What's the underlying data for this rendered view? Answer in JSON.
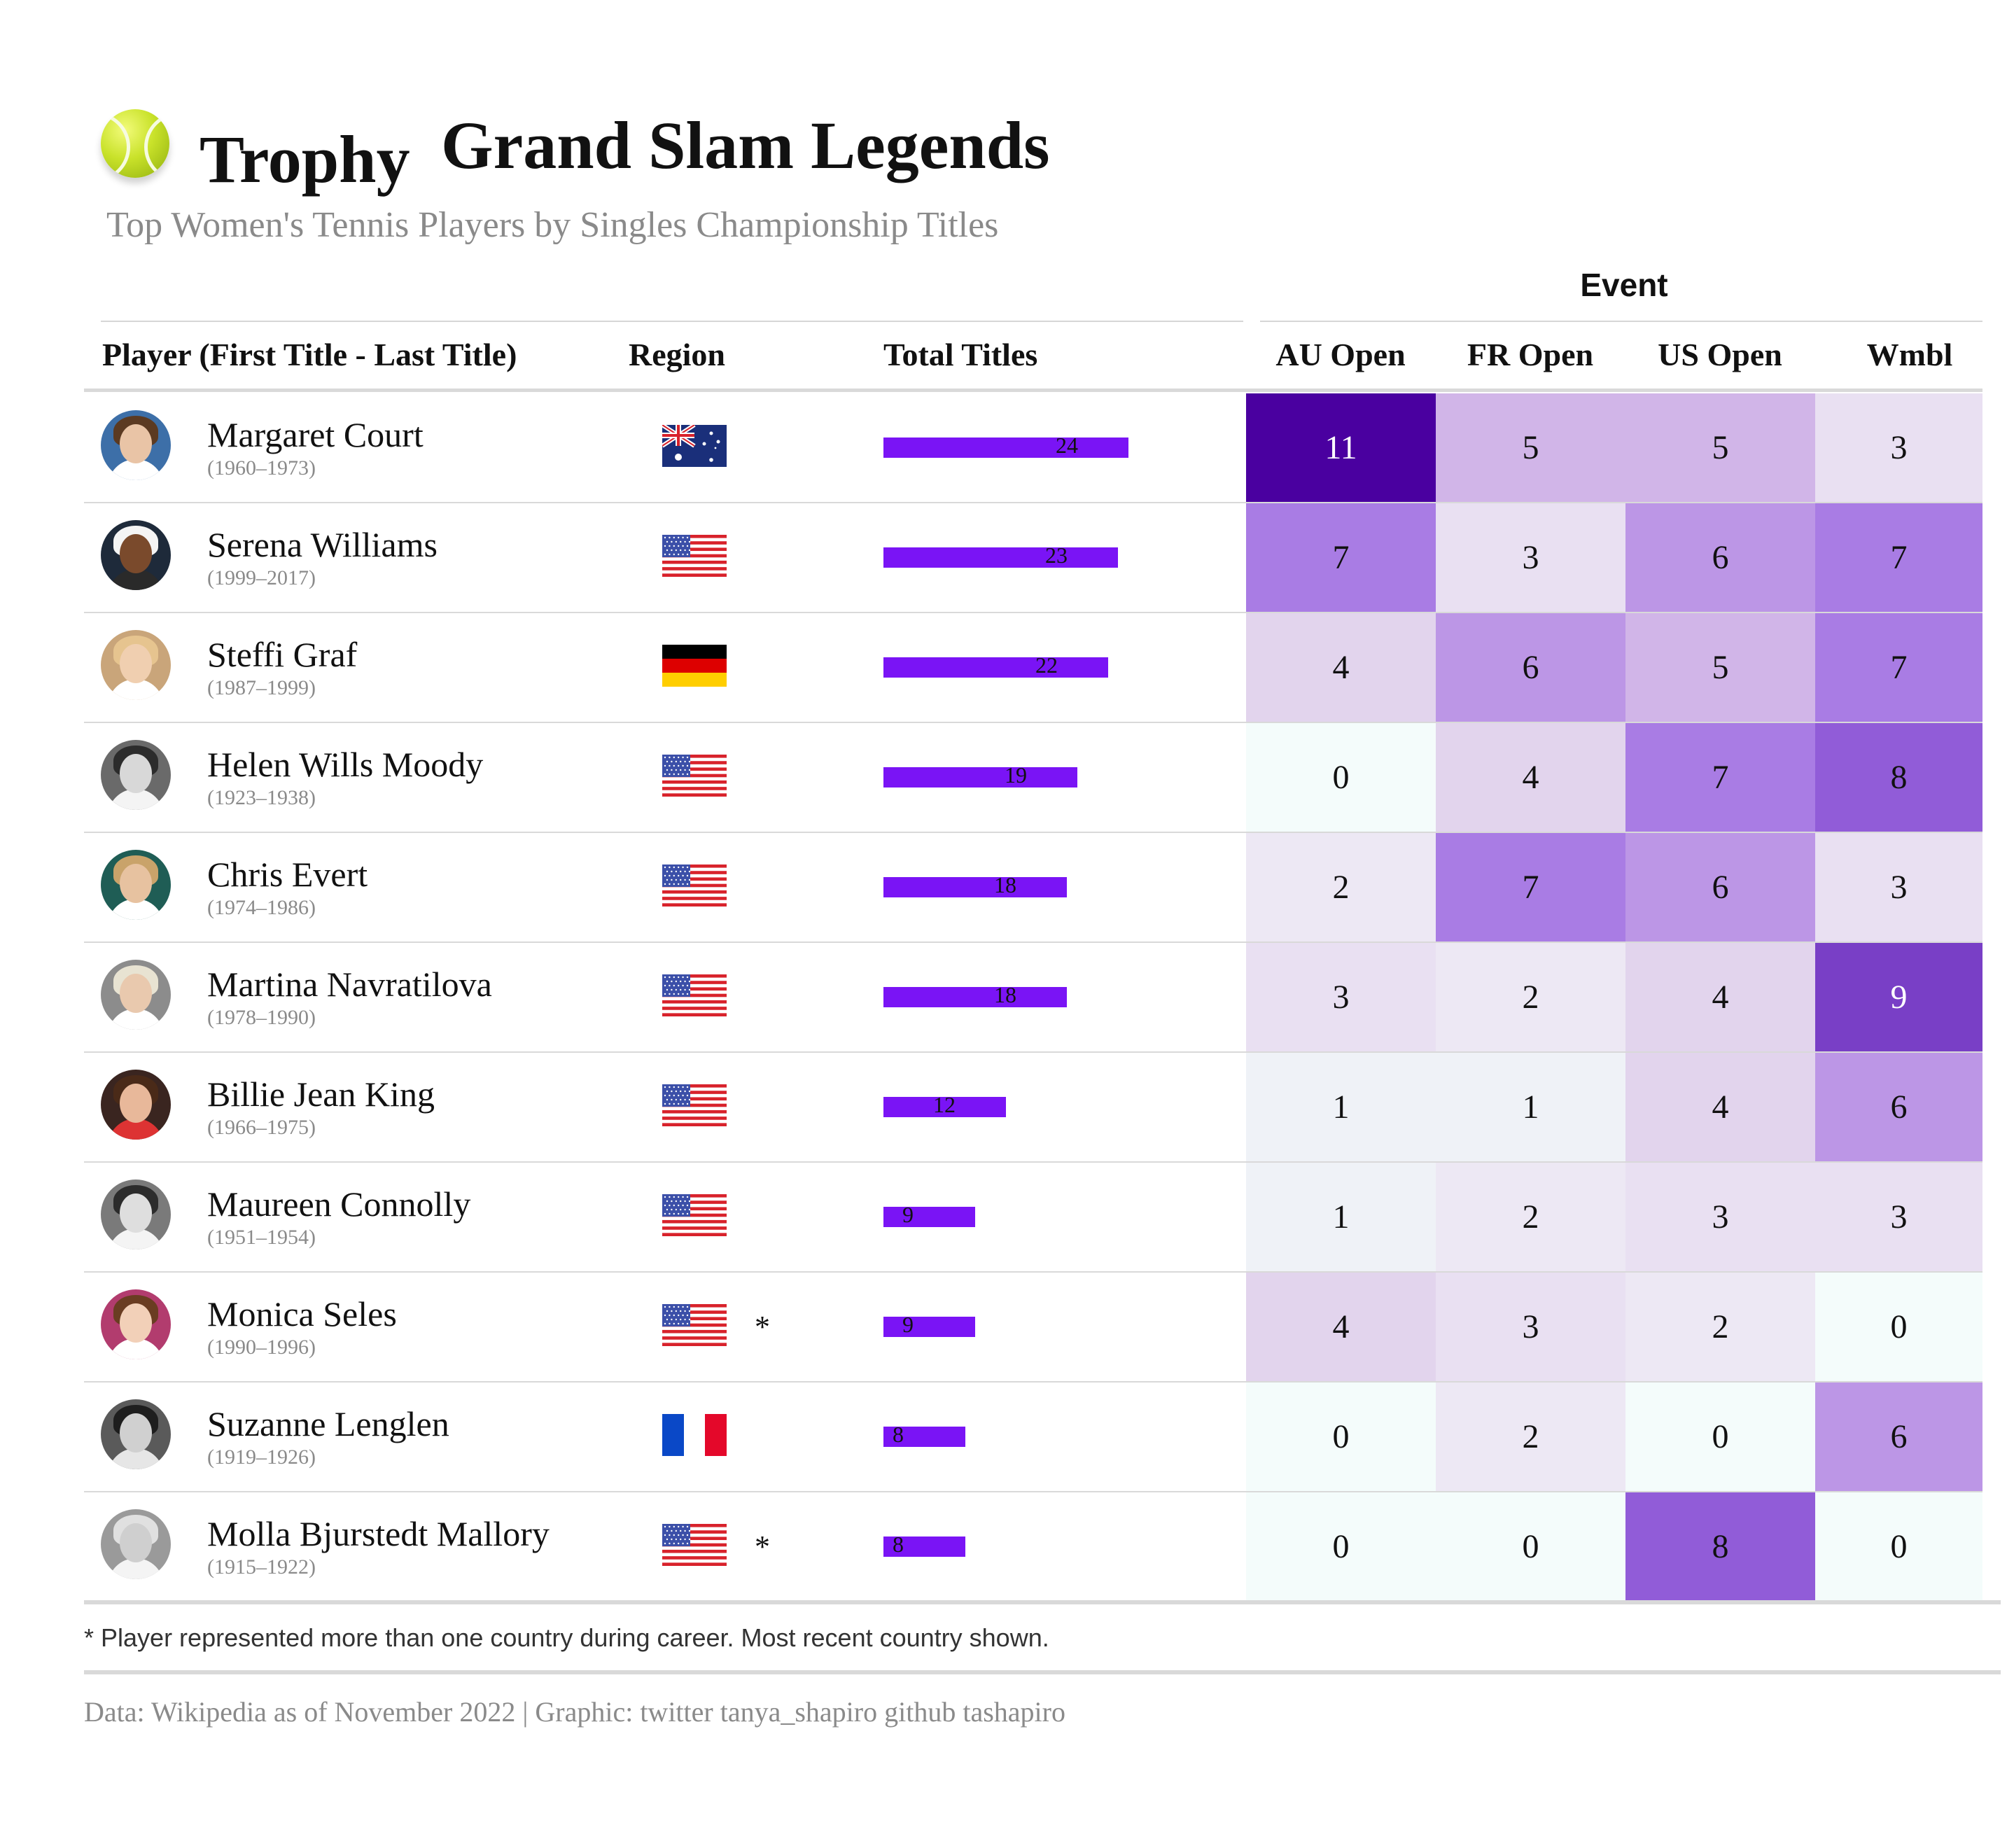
{
  "header": {
    "trophy_word": "Trophy",
    "title": "Grand Slam Legends",
    "subtitle": "Top Women's Tennis Players by Singles Championship Titles",
    "icon": "tennis-ball-icon"
  },
  "columns": {
    "player": "Player (First Title - Last Title)",
    "region": "Region",
    "total": "Total Titles",
    "event_group": "Event",
    "au": "AU Open",
    "fr": "FR Open",
    "us": "US Open",
    "wm": "Wmbl"
  },
  "colors": {
    "bar": "#7a14f5",
    "heat_low": "#f4fcfb",
    "heat_high": "#4a00a0"
  },
  "chart_data": {
    "type": "table",
    "title": "Grand Slam Legends",
    "subtitle": "Top Women's Tennis Players by Singles Championship Titles",
    "rows": [
      {
        "name": "Margaret Court",
        "years": "(1960–1973)",
        "region": "AU",
        "flag": "australia-flag-icon",
        "multi_country": false,
        "total": 24,
        "au": 11,
        "fr": 5,
        "us": 5,
        "wm": 3
      },
      {
        "name": "Serena Williams",
        "years": "(1999–2017)",
        "region": "US",
        "flag": "usa-flag-icon",
        "multi_country": false,
        "total": 23,
        "au": 7,
        "fr": 3,
        "us": 6,
        "wm": 7
      },
      {
        "name": "Steffi Graf",
        "years": "(1987–1999)",
        "region": "DE",
        "flag": "germany-flag-icon",
        "multi_country": false,
        "total": 22,
        "au": 4,
        "fr": 6,
        "us": 5,
        "wm": 7
      },
      {
        "name": "Helen Wills Moody",
        "years": "(1923–1938)",
        "region": "US",
        "flag": "usa-flag-icon",
        "multi_country": false,
        "total": 19,
        "au": 0,
        "fr": 4,
        "us": 7,
        "wm": 8
      },
      {
        "name": "Chris Evert",
        "years": "(1974–1986)",
        "region": "US",
        "flag": "usa-flag-icon",
        "multi_country": false,
        "total": 18,
        "au": 2,
        "fr": 7,
        "us": 6,
        "wm": 3
      },
      {
        "name": "Martina Navratilova",
        "years": "(1978–1990)",
        "region": "US",
        "flag": "usa-flag-icon",
        "multi_country": false,
        "total": 18,
        "au": 3,
        "fr": 2,
        "us": 4,
        "wm": 9
      },
      {
        "name": "Billie Jean King",
        "years": "(1966–1975)",
        "region": "US",
        "flag": "usa-flag-icon",
        "multi_country": false,
        "total": 12,
        "au": 1,
        "fr": 1,
        "us": 4,
        "wm": 6
      },
      {
        "name": "Maureen Connolly",
        "years": "(1951–1954)",
        "region": "US",
        "flag": "usa-flag-icon",
        "multi_country": false,
        "total": 9,
        "au": 1,
        "fr": 2,
        "us": 3,
        "wm": 3
      },
      {
        "name": "Monica Seles",
        "years": "(1990–1996)",
        "region": "US",
        "flag": "usa-flag-icon",
        "multi_country": true,
        "total": 9,
        "au": 4,
        "fr": 3,
        "us": 2,
        "wm": 0
      },
      {
        "name": "Suzanne Lenglen",
        "years": "(1919–1926)",
        "region": "FR",
        "flag": "france-flag-icon",
        "multi_country": false,
        "total": 8,
        "au": 0,
        "fr": 2,
        "us": 0,
        "wm": 6
      },
      {
        "name": "Molla Bjurstedt Mallory",
        "years": "(1915–1922)",
        "region": "US",
        "flag": "usa-flag-icon",
        "multi_country": true,
        "total": 8,
        "au": 0,
        "fr": 0,
        "us": 8,
        "wm": 0
      }
    ],
    "bar_max": 24,
    "heat_range": [
      0,
      11
    ]
  },
  "footnote": "* Player represented more than one country during career. Most recent country shown.",
  "asterisk": "*",
  "source": "Data: Wikipedia as of November 2022 | Graphic: twitter tanya_shapiro github tashapiro"
}
